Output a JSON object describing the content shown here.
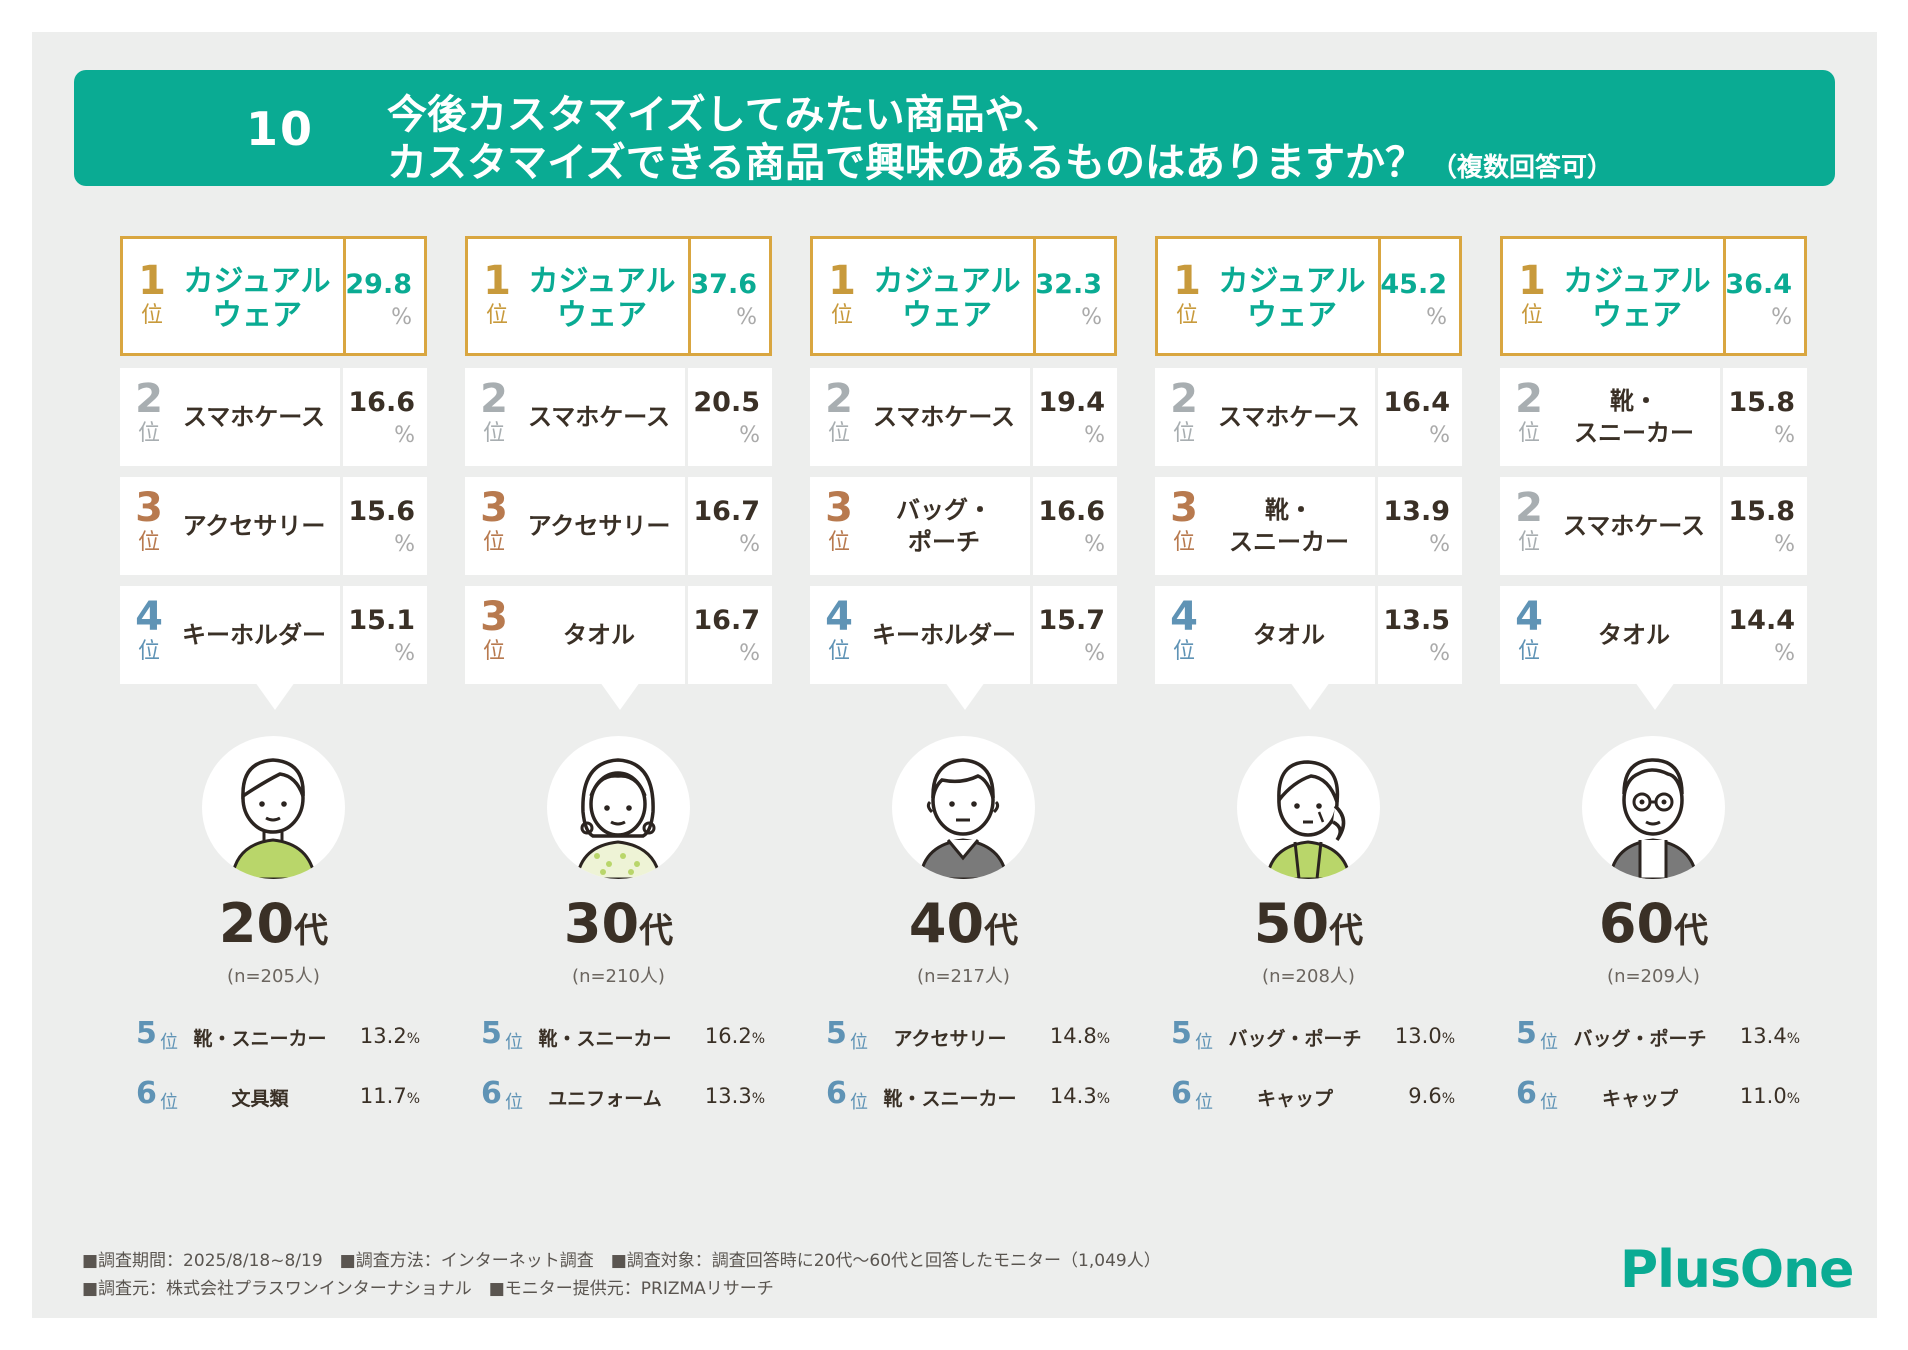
{
  "header": {
    "number": "10",
    "line1": "今後カスタマイズしてみたい商品や、",
    "line2": "カスタマイズできる商品で興味のあるものはありますか？",
    "note": "（複数回答可）"
  },
  "colors": {
    "accent_green": "#0aab93",
    "rank1_gold": "#c89a3c",
    "rank2_silver": "#a8aeb1",
    "rank3_bronze": "#b87a4f",
    "rank4_blue": "#5f93b5",
    "panel_bg": "#edeeed"
  },
  "rank_suffix": "位",
  "percent_sign": "%",
  "chart_data": {
    "type": "table",
    "groups": [
      {
        "age_num": "20",
        "age_suffix": "代",
        "n": "(n=205人)",
        "avatar_icon": "young-man-icon",
        "top": [
          {
            "rank": "1",
            "label": "カジュアル\nウェア",
            "value": "29.8"
          },
          {
            "rank": "2",
            "label": "スマホケース",
            "value": "16.6"
          },
          {
            "rank": "3",
            "label": "アクセサリー",
            "value": "15.6"
          },
          {
            "rank": "4",
            "label": "キーホルダー",
            "value": "15.1"
          }
        ],
        "extra": [
          {
            "rank": "5",
            "label": "靴・スニーカー",
            "value": "13.2"
          },
          {
            "rank": "6",
            "label": "文具類",
            "value": "11.7"
          }
        ]
      },
      {
        "age_num": "30",
        "age_suffix": "代",
        "n": "(n=210人)",
        "avatar_icon": "young-woman-icon",
        "top": [
          {
            "rank": "1",
            "label": "カジュアル\nウェア",
            "value": "37.6"
          },
          {
            "rank": "2",
            "label": "スマホケース",
            "value": "20.5"
          },
          {
            "rank": "3",
            "label": "アクセサリー",
            "value": "16.7"
          },
          {
            "rank": "3",
            "label": "タオル",
            "value": "16.7"
          }
        ],
        "extra": [
          {
            "rank": "5",
            "label": "靴・スニーカー",
            "value": "16.2"
          },
          {
            "rank": "6",
            "label": "ユニフォーム",
            "value": "13.3"
          }
        ]
      },
      {
        "age_num": "40",
        "age_suffix": "代",
        "n": "(n=217人)",
        "avatar_icon": "middle-aged-man-icon",
        "top": [
          {
            "rank": "1",
            "label": "カジュアル\nウェア",
            "value": "32.3"
          },
          {
            "rank": "2",
            "label": "スマホケース",
            "value": "19.4"
          },
          {
            "rank": "3",
            "label": "バッグ・\nポーチ",
            "value": "16.6"
          },
          {
            "rank": "4",
            "label": "キーホルダー",
            "value": "15.7"
          }
        ],
        "extra": [
          {
            "rank": "5",
            "label": "アクセサリー",
            "value": "14.8"
          },
          {
            "rank": "6",
            "label": "靴・スニーカー",
            "value": "14.3"
          }
        ]
      },
      {
        "age_num": "50",
        "age_suffix": "代",
        "n": "(n=208人)",
        "avatar_icon": "middle-aged-woman-icon",
        "top": [
          {
            "rank": "1",
            "label": "カジュアル\nウェア",
            "value": "45.2"
          },
          {
            "rank": "2",
            "label": "スマホケース",
            "value": "16.4"
          },
          {
            "rank": "3",
            "label": "靴・\nスニーカー",
            "value": "13.9"
          },
          {
            "rank": "4",
            "label": "タオル",
            "value": "13.5"
          }
        ],
        "extra": [
          {
            "rank": "5",
            "label": "バッグ・ポーチ",
            "value": "13.0"
          },
          {
            "rank": "6",
            "label": "キャップ",
            "value": "9.6"
          }
        ]
      },
      {
        "age_num": "60",
        "age_suffix": "代",
        "n": "(n=209人)",
        "avatar_icon": "older-man-with-glasses-icon",
        "top": [
          {
            "rank": "1",
            "label": "カジュアル\nウェア",
            "value": "36.4"
          },
          {
            "rank": "2",
            "label": "靴・\nスニーカー",
            "value": "15.8"
          },
          {
            "rank": "2",
            "label": "スマホケース",
            "value": "15.8"
          },
          {
            "rank": "4",
            "label": "タオル",
            "value": "14.4"
          }
        ],
        "extra": [
          {
            "rank": "5",
            "label": "バッグ・ポーチ",
            "value": "13.4"
          },
          {
            "rank": "6",
            "label": "キャップ",
            "value": "11.0"
          }
        ]
      }
    ]
  },
  "footer": {
    "line1": "■調査期間：2025/8/18~8/19　■調査方法：インターネット調査　■調査対象：調査回答時に20代〜60代と回答したモニター（1,049人）",
    "line2": "■調査元：株式会社プラスワンインターナショナル　■モニター提供元：PRIZMAリサーチ"
  },
  "logo": "PlusOne"
}
